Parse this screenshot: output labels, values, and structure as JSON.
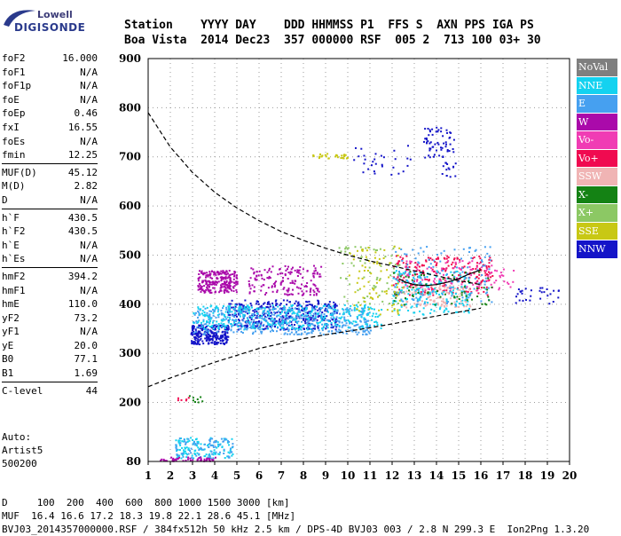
{
  "logo": {
    "line1": "Lowell",
    "line2": "DIGISONDE"
  },
  "header": {
    "line1": "Station    YYYY DAY    DDD HHMMSS P1  FFS S  AXN PPS IGA PS",
    "line2": "Boa Vista  2014 Dec23  357 000000 RSF  005 2  713 100 03+ 30"
  },
  "params": [
    {
      "k": "foF2",
      "v": "16.000"
    },
    {
      "k": "foF1",
      "v": "N/A"
    },
    {
      "k": "foF1p",
      "v": "N/A"
    },
    {
      "k": "foE",
      "v": "N/A"
    },
    {
      "k": "foEp",
      "v": "0.46"
    },
    {
      "k": "fxI",
      "v": "16.55"
    },
    {
      "k": "foEs",
      "v": "N/A"
    },
    {
      "k": "fmin",
      "v": "12.25"
    },
    {
      "k": "MUF(D)",
      "v": "45.12",
      "sep": true
    },
    {
      "k": "M(D)",
      "v": "2.82"
    },
    {
      "k": "D",
      "v": "N/A"
    },
    {
      "k": "h`F",
      "v": "430.5",
      "sep": true
    },
    {
      "k": "h`F2",
      "v": "430.5"
    },
    {
      "k": "h`E",
      "v": "N/A"
    },
    {
      "k": "h`Es",
      "v": "N/A"
    },
    {
      "k": "hmF2",
      "v": "394.2",
      "sep": true
    },
    {
      "k": "hmF1",
      "v": "N/A"
    },
    {
      "k": "hmE",
      "v": "110.0"
    },
    {
      "k": "yF2",
      "v": "73.2"
    },
    {
      "k": "yF1",
      "v": "N/A"
    },
    {
      "k": "yE",
      "v": "20.0"
    },
    {
      "k": "B0",
      "v": "77.1"
    },
    {
      "k": "B1",
      "v": "1.69"
    },
    {
      "k": "C-level",
      "v": "44",
      "sep": true
    }
  ],
  "auto": {
    "line1": "Auto:",
    "line2": "Artist5",
    "line3": "500200"
  },
  "legend": [
    {
      "label": "NoVal",
      "color": "#7f7f7f"
    },
    {
      "label": "NNE",
      "color": "#14d2f0"
    },
    {
      "label": "E",
      "color": "#46a0f0"
    },
    {
      "label": "W",
      "color": "#aa0aaa"
    },
    {
      "label": "Vo-",
      "color": "#f03cb4"
    },
    {
      "label": "Vo+",
      "color": "#f00a50"
    },
    {
      "label": "SSW",
      "color": "#f0b4b4"
    },
    {
      "label": "X-",
      "color": "#148214"
    },
    {
      "label": "X+",
      "color": "#8cc864"
    },
    {
      "label": "SSE",
      "color": "#c8c814"
    },
    {
      "label": "NNW",
      "color": "#1414c8"
    }
  ],
  "footer": {
    "line1": "D     100  200  400  600  800 1000 1500 3000 [km]",
    "line2": "MUF  16.4 16.6 17.2 18.3 19.8 22.1 28.6 45.1 [MHz]",
    "line3": "BVJ03_2014357000000.RSF / 384fx512h 50 kHz 2.5 km / DPS-4D BVJ03 003 / 2.8 N 299.3 E  Ion2Png 1.3.20"
  },
  "chart_data": {
    "type": "scatter",
    "xlim": [
      1,
      20
    ],
    "ylim": [
      80,
      900
    ],
    "xticks": [
      "1",
      "2",
      "3",
      "4",
      "5",
      "6",
      "7",
      "8",
      "9",
      "10",
      "11",
      "12",
      "13",
      "14",
      "15",
      "16",
      "17",
      "18",
      "19",
      "20"
    ],
    "yticks": [
      "80",
      "200",
      "300",
      "400",
      "500",
      "600",
      "700",
      "800",
      "900"
    ],
    "grid": true,
    "model_curve": {
      "upper": [
        [
          1,
          790
        ],
        [
          2,
          720
        ],
        [
          3,
          668
        ],
        [
          4,
          628
        ],
        [
          5,
          596
        ],
        [
          6,
          570
        ],
        [
          7,
          548
        ],
        [
          8,
          530
        ],
        [
          9,
          514
        ],
        [
          10,
          500
        ],
        [
          11,
          488
        ],
        [
          12,
          478
        ],
        [
          13,
          468
        ],
        [
          14,
          458
        ],
        [
          15,
          448
        ],
        [
          16,
          440
        ]
      ],
      "lower": [
        [
          1,
          232
        ],
        [
          2,
          250
        ],
        [
          3,
          266
        ],
        [
          4,
          282
        ],
        [
          5,
          296
        ],
        [
          6,
          310
        ],
        [
          7,
          320
        ],
        [
          8,
          330
        ],
        [
          9,
          338
        ],
        [
          10,
          345
        ],
        [
          11,
          352
        ],
        [
          12,
          360
        ],
        [
          13,
          368
        ],
        [
          14,
          376
        ],
        [
          15,
          384
        ],
        [
          16,
          392
        ]
      ]
    },
    "trace": [
      [
        12.3,
        452
      ],
      [
        12.6,
        445
      ],
      [
        13,
        440
      ],
      [
        13.5,
        438
      ],
      [
        14,
        440
      ],
      [
        14.5,
        445
      ],
      [
        15,
        452
      ],
      [
        15.5,
        462
      ],
      [
        16,
        470
      ]
    ],
    "clusters": [
      {
        "color": "#aa0aaa",
        "x": [
          3.2,
          5.0
        ],
        "y": [
          425,
          470
        ],
        "n": 240
      },
      {
        "color": "#aa0aaa",
        "x": [
          5.5,
          8.8
        ],
        "y": [
          420,
          480
        ],
        "n": 160
      },
      {
        "color": "#1414c8",
        "x": [
          2.9,
          4.6
        ],
        "y": [
          320,
          360
        ],
        "n": 260
      },
      {
        "color": "#1414c8",
        "x": [
          4.5,
          9.5
        ],
        "y": [
          350,
          410
        ],
        "n": 380
      },
      {
        "color": "#46a0f0",
        "x": [
          3.0,
          11.0
        ],
        "y": [
          340,
          395
        ],
        "n": 460
      },
      {
        "color": "#14d2f0",
        "x": [
          3.0,
          11.5
        ],
        "y": [
          350,
          400
        ],
        "n": 340
      },
      {
        "color": "#14d2f0",
        "x": [
          2.2,
          4.8
        ],
        "y": [
          88,
          130
        ],
        "n": 120
      },
      {
        "color": "#46a0f0",
        "x": [
          2.2,
          4.8
        ],
        "y": [
          88,
          130
        ],
        "n": 80
      },
      {
        "color": "#aa0aaa",
        "x": [
          1.5,
          4.0
        ],
        "y": [
          82,
          90
        ],
        "n": 50
      },
      {
        "color": "#c8c814",
        "x": [
          8.4,
          10.0
        ],
        "y": [
          698,
          708
        ],
        "n": 30
      },
      {
        "color": "#1414c8",
        "x": [
          10.2,
          12.8
        ],
        "y": [
          665,
          725
        ],
        "n": 30
      },
      {
        "color": "#1414c8",
        "x": [
          13.4,
          14.8
        ],
        "y": [
          700,
          765
        ],
        "n": 60
      },
      {
        "color": "#1414c8",
        "x": [
          14.2,
          14.9
        ],
        "y": [
          660,
          690
        ],
        "n": 15
      },
      {
        "color": "#f00a50",
        "x": [
          12.0,
          16.5
        ],
        "y": [
          420,
          500
        ],
        "n": 240
      },
      {
        "color": "#f03cb4",
        "x": [
          12.5,
          17.5
        ],
        "y": [
          430,
          490
        ],
        "n": 110
      },
      {
        "color": "#f0b4b4",
        "x": [
          12.5,
          15.5
        ],
        "y": [
          395,
          440
        ],
        "n": 120
      },
      {
        "color": "#14d2f0",
        "x": [
          12.0,
          15.5
        ],
        "y": [
          380,
          470
        ],
        "n": 180
      },
      {
        "color": "#46a0f0",
        "x": [
          12.0,
          16.5
        ],
        "y": [
          400,
          520
        ],
        "n": 120
      },
      {
        "color": "#148214",
        "x": [
          12.0,
          16.5
        ],
        "y": [
          400,
          470
        ],
        "n": 60
      },
      {
        "color": "#8cc864",
        "x": [
          9.5,
          12.5
        ],
        "y": [
          400,
          520
        ],
        "n": 70
      },
      {
        "color": "#c8c814",
        "x": [
          10.0,
          12.5
        ],
        "y": [
          380,
          520
        ],
        "n": 80
      },
      {
        "color": "#1414c8",
        "x": [
          17.5,
          19.5
        ],
        "y": [
          400,
          440
        ],
        "n": 30
      },
      {
        "color": "#148214",
        "x": [
          2.5,
          3.5
        ],
        "y": [
          200,
          215
        ],
        "n": 8
      },
      {
        "color": "#f00a50",
        "x": [
          2.3,
          2.8
        ],
        "y": [
          205,
          215
        ],
        "n": 6
      }
    ]
  }
}
